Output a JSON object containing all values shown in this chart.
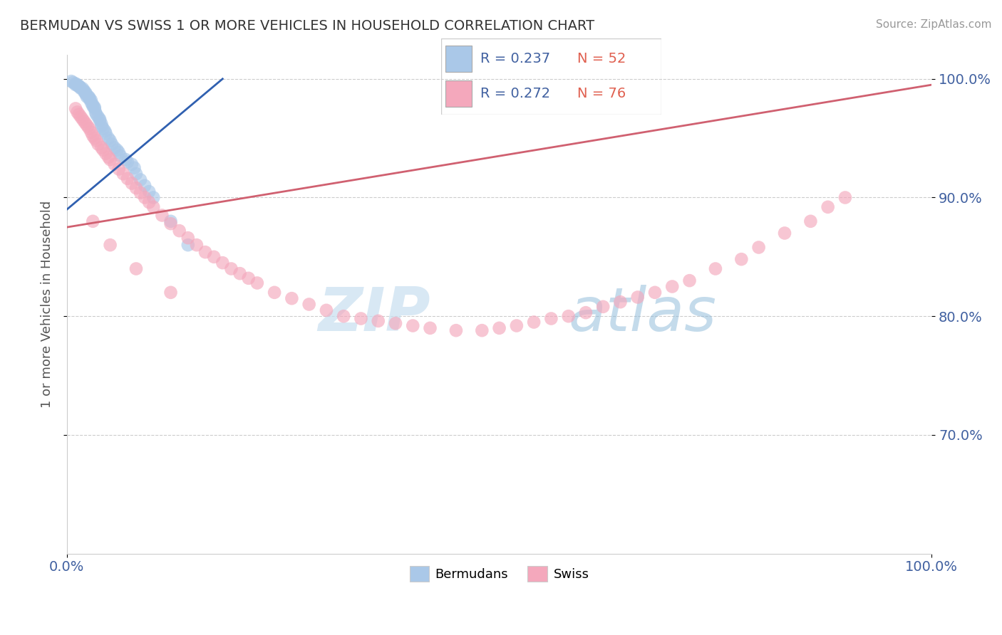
{
  "title": "BERMUDAN VS SWISS 1 OR MORE VEHICLES IN HOUSEHOLD CORRELATION CHART",
  "source": "Source: ZipAtlas.com",
  "ylabel": "1 or more Vehicles in Household",
  "xlim": [
    0.0,
    1.0
  ],
  "ylim": [
    0.6,
    1.02
  ],
  "x_ticks": [
    0.0,
    1.0
  ],
  "x_tick_labels": [
    "0.0%",
    "100.0%"
  ],
  "y_ticks": [
    0.7,
    0.8,
    0.9,
    1.0
  ],
  "y_tick_labels": [
    "70.0%",
    "80.0%",
    "90.0%",
    "100.0%"
  ],
  "blue_color": "#aac8e8",
  "pink_color": "#f4a8bc",
  "blue_line_color": "#3060b0",
  "pink_line_color": "#d06070",
  "legend_blue_R": "R = 0.237",
  "legend_blue_N": "N = 52",
  "legend_pink_R": "R = 0.272",
  "legend_pink_N": "N = 76",
  "watermark_ZIP": "ZIP",
  "watermark_atlas": "atlas",
  "bermudans_x": [
    0.005,
    0.007,
    0.01,
    0.01,
    0.012,
    0.013,
    0.014,
    0.015,
    0.016,
    0.018,
    0.02,
    0.02,
    0.022,
    0.022,
    0.023,
    0.025,
    0.026,
    0.026,
    0.028,
    0.028,
    0.03,
    0.03,
    0.032,
    0.032,
    0.033,
    0.034,
    0.036,
    0.038,
    0.038,
    0.04,
    0.04,
    0.042,
    0.044,
    0.045,
    0.048,
    0.05,
    0.052,
    0.055,
    0.058,
    0.06,
    0.062,
    0.068,
    0.07,
    0.075,
    0.078,
    0.08,
    0.085,
    0.09,
    0.095,
    0.1,
    0.12,
    0.14
  ],
  "bermudans_y": [
    0.998,
    0.997,
    0.996,
    0.995,
    0.995,
    0.994,
    0.994,
    0.993,
    0.992,
    0.992,
    0.99,
    0.989,
    0.988,
    0.987,
    0.985,
    0.985,
    0.984,
    0.983,
    0.982,
    0.98,
    0.978,
    0.977,
    0.976,
    0.975,
    0.972,
    0.97,
    0.968,
    0.966,
    0.965,
    0.962,
    0.96,
    0.958,
    0.956,
    0.954,
    0.95,
    0.948,
    0.945,
    0.942,
    0.94,
    0.938,
    0.935,
    0.932,
    0.93,
    0.928,
    0.925,
    0.92,
    0.915,
    0.91,
    0.905,
    0.9,
    0.88,
    0.86
  ],
  "swiss_x": [
    0.01,
    0.012,
    0.014,
    0.016,
    0.018,
    0.02,
    0.022,
    0.024,
    0.026,
    0.028,
    0.03,
    0.032,
    0.034,
    0.036,
    0.04,
    0.042,
    0.045,
    0.048,
    0.05,
    0.055,
    0.06,
    0.065,
    0.07,
    0.075,
    0.08,
    0.085,
    0.09,
    0.095,
    0.1,
    0.11,
    0.12,
    0.13,
    0.14,
    0.15,
    0.16,
    0.17,
    0.18,
    0.19,
    0.2,
    0.21,
    0.22,
    0.24,
    0.26,
    0.28,
    0.3,
    0.32,
    0.34,
    0.36,
    0.38,
    0.4,
    0.42,
    0.45,
    0.48,
    0.5,
    0.52,
    0.54,
    0.56,
    0.58,
    0.6,
    0.62,
    0.64,
    0.66,
    0.68,
    0.7,
    0.72,
    0.75,
    0.78,
    0.8,
    0.83,
    0.86,
    0.88,
    0.9,
    0.03,
    0.05,
    0.08,
    0.12
  ],
  "swiss_y": [
    0.975,
    0.972,
    0.97,
    0.968,
    0.966,
    0.964,
    0.962,
    0.96,
    0.958,
    0.955,
    0.952,
    0.95,
    0.948,
    0.945,
    0.942,
    0.94,
    0.937,
    0.934,
    0.932,
    0.928,
    0.924,
    0.92,
    0.916,
    0.912,
    0.908,
    0.904,
    0.9,
    0.896,
    0.892,
    0.885,
    0.878,
    0.872,
    0.866,
    0.86,
    0.854,
    0.85,
    0.845,
    0.84,
    0.836,
    0.832,
    0.828,
    0.82,
    0.815,
    0.81,
    0.805,
    0.8,
    0.798,
    0.796,
    0.794,
    0.792,
    0.79,
    0.788,
    0.788,
    0.79,
    0.792,
    0.795,
    0.798,
    0.8,
    0.803,
    0.808,
    0.812,
    0.816,
    0.82,
    0.825,
    0.83,
    0.84,
    0.848,
    0.858,
    0.87,
    0.88,
    0.892,
    0.9,
    0.88,
    0.86,
    0.84,
    0.82
  ]
}
